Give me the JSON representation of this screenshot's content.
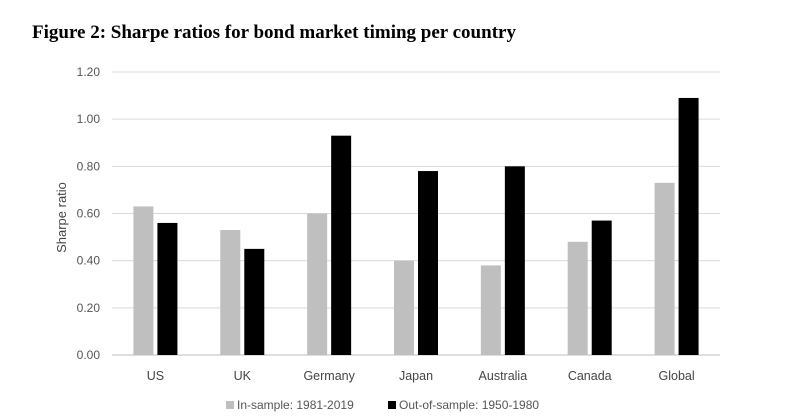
{
  "chart_data": {
    "type": "bar",
    "title": "Figure 2: Sharpe ratios for bond market timing per country",
    "ylabel": "Sharpe ratio",
    "xlabel": "",
    "ylim": [
      0,
      1.2
    ],
    "yticks": [
      "0.00",
      "0.20",
      "0.40",
      "0.60",
      "0.80",
      "1.00",
      "1.20"
    ],
    "grid": true,
    "legend_position": "bottom",
    "categories": [
      "US",
      "UK",
      "Germany",
      "Japan",
      "Australia",
      "Canada",
      "Global"
    ],
    "series": [
      {
        "name": "In-sample: 1981-2019",
        "color": "#bfbfbf",
        "values": [
          0.63,
          0.53,
          0.6,
          0.4,
          0.38,
          0.48,
          0.73
        ]
      },
      {
        "name": "Out-of-sample: 1950-1980",
        "color": "#000000",
        "values": [
          0.56,
          0.45,
          0.93,
          0.78,
          0.8,
          0.57,
          1.09
        ]
      }
    ]
  }
}
